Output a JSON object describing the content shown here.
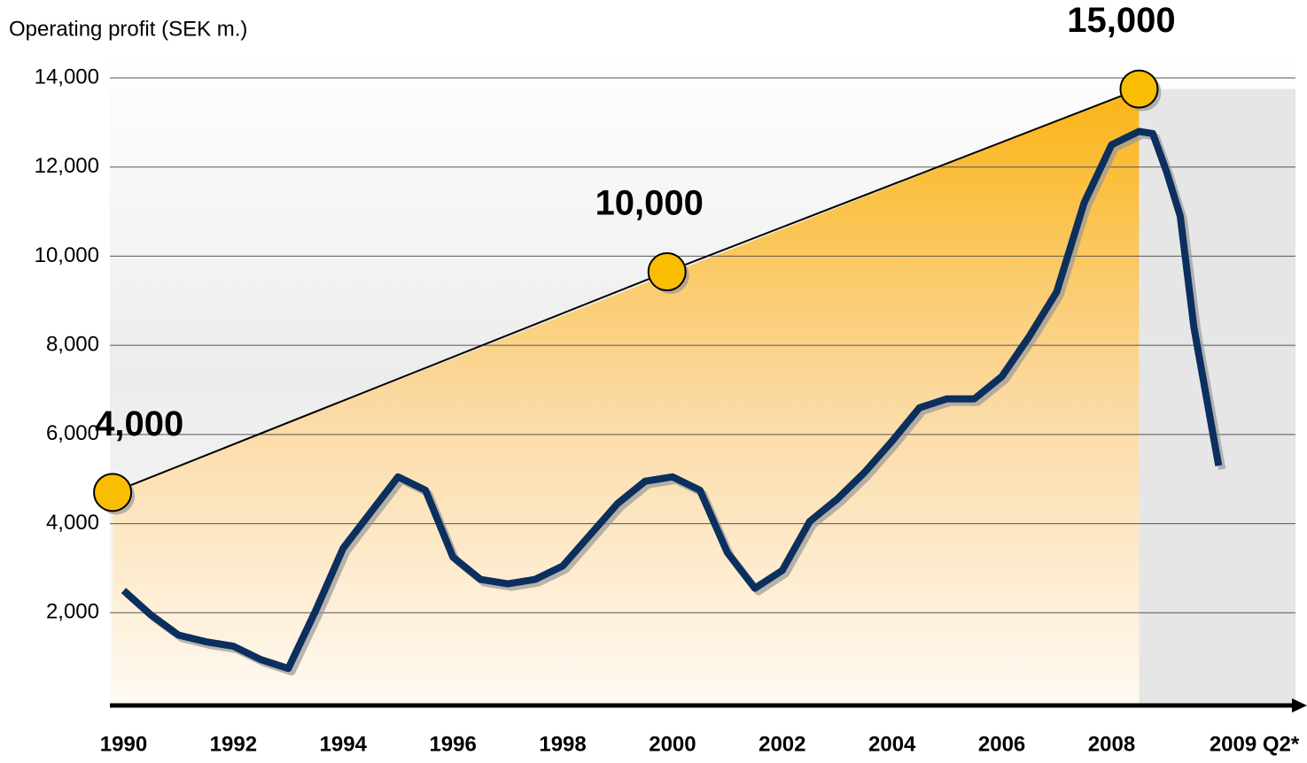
{
  "chart_data": {
    "type": "line",
    "title": "Operating profit (SEK m.)",
    "x": [
      1990,
      1990.5,
      1991,
      1991.5,
      1992,
      1992.5,
      1993,
      1993.5,
      1994,
      1994.5,
      1995,
      1995.5,
      1996,
      1996.5,
      1997,
      1997.5,
      1998,
      1998.5,
      1999,
      1999.5,
      2000,
      2000.5,
      2001,
      2001.5,
      2002,
      2002.5,
      2003,
      2003.5,
      2004,
      2004.5,
      2005,
      2005.5,
      2006,
      2006.5,
      2007,
      2007.5,
      2008,
      2008.5,
      2008.75,
      2009,
      2009.25,
      2009.5,
      2009.95
    ],
    "series": [
      {
        "color": "#0b2f5e",
        "values": [
          2500,
          1950,
          1500,
          1350,
          1250,
          950,
          750,
          2050,
          3450,
          4250,
          5050,
          4750,
          3250,
          2750,
          2650,
          2750,
          3050,
          3750,
          4450,
          4950,
          5050,
          4750,
          3350,
          2550,
          2950,
          4050,
          4550,
          5150,
          5850,
          6600,
          6800,
          6800,
          7300,
          8200,
          9200,
          11200,
          12500,
          12800,
          12750,
          11900,
          10900,
          8400,
          5300
        ]
      }
    ],
    "targets": {
      "color": "#fbbc04",
      "x": [
        1989.8,
        1999.9,
        2008.5
      ],
      "values": [
        4700,
        9650,
        13750
      ]
    },
    "annotations": [
      "4,000",
      "10,000",
      "15,000"
    ],
    "xlim": [
      1989.75,
      2011.35
    ],
    "xticks": [
      1990,
      1992,
      1994,
      1996,
      1998,
      2000,
      2002,
      2004,
      2006,
      2008,
      {
        "value": 2010.6,
        "label": "2009 Q2*"
      }
    ],
    "ylim": [
      0,
      14000
    ],
    "yticks": [
      {
        "value": 2000,
        "label": "2,000"
      },
      {
        "value": 4000,
        "label": "4,000"
      },
      {
        "value": 6000,
        "label": "6,000"
      },
      {
        "value": 8000,
        "label": "8,000"
      },
      {
        "value": 10000,
        "label": "10,000"
      },
      {
        "value": 12000,
        "label": "12,000"
      },
      {
        "value": 14000,
        "label": "14,000"
      }
    ],
    "grid": true
  }
}
